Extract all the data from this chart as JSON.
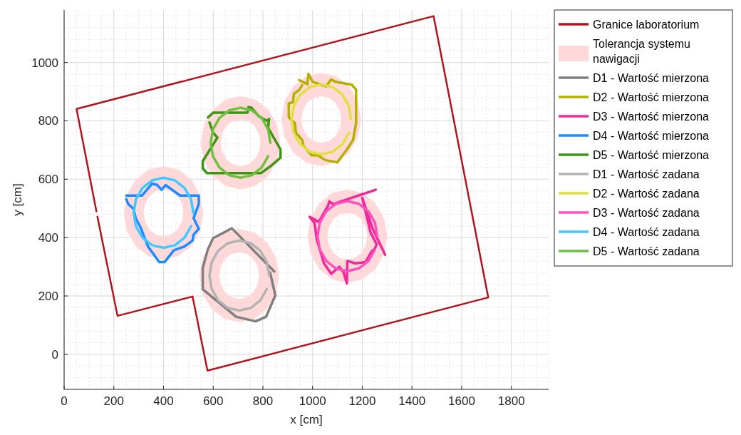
{
  "chart_data": {
    "type": "line",
    "xlabel": "x [cm]",
    "ylabel": "y [cm]",
    "xlim": [
      0,
      1950
    ],
    "ylim": [
      -120,
      1180
    ],
    "xticks": [
      0,
      200,
      400,
      600,
      800,
      1000,
      1200,
      1400,
      1600,
      1800
    ],
    "yticks": [
      0,
      200,
      400,
      600,
      800,
      1000
    ],
    "grid": true,
    "legend": "top right",
    "line_style": "solid",
    "marker": "none",
    "series": [
      {
        "name": "Granice laboratorium",
        "color": "#b2141c",
        "x": [
          130,
          50,
          1487,
          1707,
          577,
          517,
          215,
          134
        ],
        "values": [
          490,
          841,
          1159,
          195,
          -56,
          198,
          132,
          472
        ]
      },
      {
        "name": "Tolerancja systemu nawigacji",
        "type": "area",
        "color": "#ffd9d9",
        "x": [
          865,
          853,
          818,
          766,
          705,
          644,
          592,
          557,
          545,
          557,
          592,
          644,
          705,
          766,
          818,
          853,
          865,
          null,
          785,
          779,
          762,
          736,
          705,
          674,
          648,
          631,
          625,
          631,
          648,
          674,
          705,
          736,
          762,
          779,
          785,
          null,
          1195,
          1183,
          1148,
          1096,
          1035,
          974,
          922,
          887,
          875,
          887,
          922,
          974,
          1035,
          1096,
          1148,
          1183,
          1195,
          null,
          1115,
          1109,
          1092,
          1066,
          1035,
          1004,
          978,
          961,
          955,
          961,
          978,
          1004,
          1035,
          1066,
          1092,
          1109,
          1115,
          null,
          1300,
          1288,
          1253,
          1201,
          1140,
          1079,
          1027,
          992,
          980,
          992,
          1027,
          1079,
          1140,
          1201,
          1253,
          1288,
          1300,
          null,
          1220,
          1214,
          1197,
          1171,
          1140,
          1109,
          1083,
          1066,
          1060,
          1066,
          1083,
          1109,
          1140,
          1171,
          1197,
          1214,
          1220,
          null,
          560,
          548,
          513,
          461,
          400,
          339,
          287,
          252,
          240,
          252,
          287,
          339,
          400,
          461,
          513,
          548,
          560,
          null,
          480,
          474,
          457,
          431,
          400,
          369,
          343,
          326,
          320,
          326,
          343,
          369,
          400,
          431,
          457,
          474,
          480,
          null,
          870,
          858,
          823,
          771,
          710,
          649,
          597,
          562,
          550,
          562,
          597,
          649,
          710,
          771,
          823,
          858,
          870,
          null,
          790,
          784,
          767,
          741,
          710,
          679,
          653,
          636,
          630,
          636,
          653,
          679,
          710,
          741,
          767,
          784,
          790
        ],
        "values": [
          270,
          331,
          383,
          418,
          430,
          418,
          383,
          331,
          270,
          209,
          157,
          122,
          110,
          122,
          157,
          209,
          270,
          null,
          270,
          301,
          327,
          344,
          350,
          344,
          327,
          301,
          270,
          239,
          213,
          196,
          190,
          196,
          213,
          239,
          270,
          null,
          805,
          866,
          918,
          953,
          965,
          953,
          918,
          866,
          805,
          744,
          692,
          657,
          645,
          657,
          692,
          744,
          805,
          null,
          805,
          836,
          862,
          879,
          885,
          879,
          862,
          836,
          805,
          774,
          748,
          731,
          725,
          731,
          748,
          774,
          805,
          null,
          405,
          466,
          518,
          553,
          565,
          553,
          518,
          466,
          405,
          344,
          292,
          257,
          245,
          257,
          292,
          344,
          405,
          null,
          405,
          436,
          462,
          479,
          485,
          479,
          462,
          436,
          405,
          374,
          348,
          331,
          325,
          331,
          348,
          374,
          405,
          null,
          485,
          546,
          598,
          633,
          645,
          633,
          598,
          546,
          485,
          424,
          372,
          337,
          325,
          337,
          372,
          424,
          485,
          null,
          485,
          516,
          542,
          559,
          565,
          559,
          542,
          516,
          485,
          454,
          428,
          411,
          405,
          411,
          428,
          454,
          485,
          null,
          725,
          786,
          838,
          873,
          885,
          873,
          838,
          786,
          725,
          664,
          612,
          577,
          565,
          577,
          612,
          664,
          725,
          null,
          725,
          756,
          782,
          799,
          805,
          799,
          782,
          756,
          725,
          694,
          668,
          651,
          645,
          651,
          668,
          694,
          725
        ]
      },
      {
        "name": "D1 - Wartość mierzona",
        "color": "#808080",
        "x": [
          846,
          675,
          600,
          579,
          558,
          558,
          692,
          771,
          813,
          850,
          829
        ],
        "values": [
          284,
          432,
          398,
          361,
          296,
          223,
          129,
          113,
          129,
          202,
          280
        ]
      },
      {
        "name": "D2 - Wartość mierzona",
        "color": "#b3b000",
        "x": [
          946,
          979,
          983,
          1000,
          1054,
          1075,
          1092,
          1158,
          1175,
          1175,
          1163,
          1142,
          1100,
          1050,
          1021,
          996,
          963,
          958,
          933,
          929,
          904,
          904,
          921,
          925,
          946,
          958
        ],
        "values": [
          940,
          926,
          961,
          934,
          918,
          942,
          934,
          924,
          907,
          792,
          735,
          707,
          658,
          666,
          682,
          682,
          715,
          735,
          759,
          792,
          812,
          860,
          864,
          893,
          906,
          922
        ]
      },
      {
        "name": "D3 - Wartość mierzona",
        "color": "#f0289a",
        "x": [
          1254,
          1083,
          1067,
          1063,
          1025,
          988,
          1008,
          1017,
          1046,
          1075,
          1108,
          1125,
          1138,
          1140,
          1171,
          1213,
          1238,
          1250,
          1258,
          1233,
          1200,
          1208,
          1242,
          1292
        ],
        "values": [
          564,
          515,
          524,
          511,
          454,
          471,
          450,
          393,
          312,
          276,
          300,
          280,
          243,
          320,
          312,
          316,
          353,
          361,
          377,
          418,
          536,
          515,
          430,
          341
        ]
      },
      {
        "name": "D4 - Wartość mierzona",
        "color": "#1a8cff",
        "x": [
          250,
          313,
          354,
          375,
          392,
          408,
          467,
          542,
          542,
          521,
          542,
          521,
          517,
          483,
          442,
          404,
          383,
          338,
          308,
          288,
          279,
          258,
          250
        ],
        "values": [
          544,
          544,
          585,
          580,
          564,
          580,
          544,
          544,
          515,
          467,
          430,
          410,
          390,
          369,
          357,
          316,
          316,
          369,
          434,
          467,
          499,
          515,
          532
        ]
      },
      {
        "name": "D5 - Wartość mierzona",
        "color": "#3c9614",
        "x": [
          579,
          600,
          738,
          742,
          754,
          783,
          817,
          825,
          821,
          871,
          871,
          833,
          792,
          575,
          558,
          558,
          617,
          600,
          585
        ],
        "values": [
          812,
          828,
          828,
          847,
          845,
          816,
          800,
          807,
          776,
          702,
          674,
          646,
          621,
          621,
          637,
          662,
          743,
          759,
          795
        ]
      },
      {
        "name": "D1 - Wartość zadana",
        "color": "#b3b3b3",
        "x": [
          825,
          816,
          790,
          751,
          705,
          659,
          620,
          594,
          585,
          594,
          620,
          659,
          705,
          751,
          790,
          816
        ],
        "values": [
          270,
          316,
          355,
          381,
          390,
          381,
          355,
          316,
          270,
          224,
          185,
          159,
          150,
          159,
          185,
          224
        ]
      },
      {
        "name": "D2 - Wartość zadana",
        "color": "#e0e040",
        "x": [
          1155,
          1146,
          1120,
          1081,
          1035,
          989,
          950,
          924,
          915,
          924,
          950,
          989,
          1035,
          1081,
          1120,
          1146
        ],
        "values": [
          805,
          851,
          890,
          916,
          925,
          916,
          890,
          851,
          805,
          759,
          720,
          694,
          685,
          694,
          720,
          759
        ]
      },
      {
        "name": "D3 - Wartość zadana",
        "color": "#ff50c0",
        "x": [
          1260,
          1251,
          1225,
          1186,
          1140,
          1094,
          1055,
          1029,
          1020,
          1029,
          1055,
          1094,
          1140,
          1186,
          1225,
          1251
        ],
        "values": [
          405,
          451,
          490,
          516,
          525,
          516,
          490,
          451,
          405,
          359,
          320,
          294,
          285,
          294,
          320,
          359
        ]
      },
      {
        "name": "D4 - Wartość zadana",
        "color": "#40c8ff",
        "x": [
          520,
          511,
          485,
          446,
          400,
          354,
          315,
          289,
          280,
          289,
          315,
          354,
          400,
          446,
          485,
          511
        ],
        "values": [
          485,
          531,
          570,
          596,
          605,
          596,
          570,
          531,
          485,
          439,
          400,
          374,
          365,
          374,
          400,
          439
        ]
      },
      {
        "name": "D5 - Wartość zadana",
        "color": "#70c040",
        "x": [
          830,
          821,
          795,
          756,
          710,
          664,
          625,
          599,
          590,
          599,
          625,
          664,
          710,
          756,
          795,
          821
        ],
        "values": [
          725,
          771,
          810,
          836,
          845,
          836,
          810,
          771,
          725,
          679,
          640,
          614,
          605,
          614,
          640,
          679
        ]
      }
    ]
  }
}
